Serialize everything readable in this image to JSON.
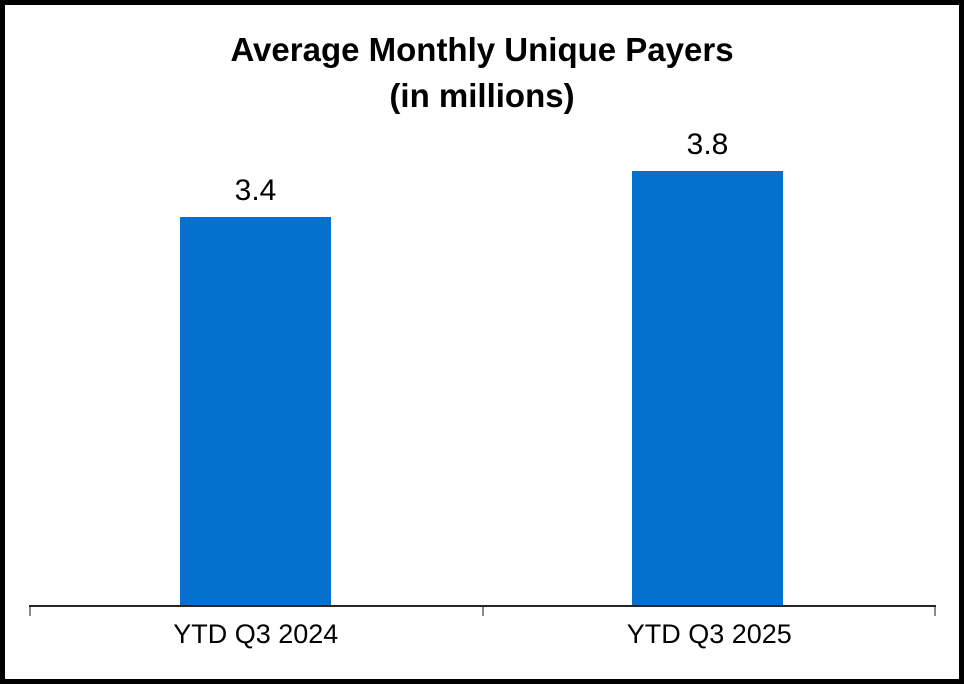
{
  "chart_data": {
    "type": "bar",
    "title": "Average Monthly Unique Payers",
    "subtitle": "(in millions)",
    "categories": [
      "YTD Q3 2024",
      "YTD Q3 2025"
    ],
    "values": [
      3.4,
      3.8
    ],
    "data_labels": [
      "3.4",
      "3.8"
    ],
    "series": [
      {
        "name": "Average Monthly Unique Payers (in millions)",
        "values": [
          3.4,
          3.8
        ]
      }
    ],
    "bar_color": "#0670CE",
    "text_color": "#000000",
    "axis_line_color": "#262626",
    "tick_color": "#8C8C8C",
    "grid": false,
    "legend_position": "none",
    "value_axis_visible": false
  }
}
